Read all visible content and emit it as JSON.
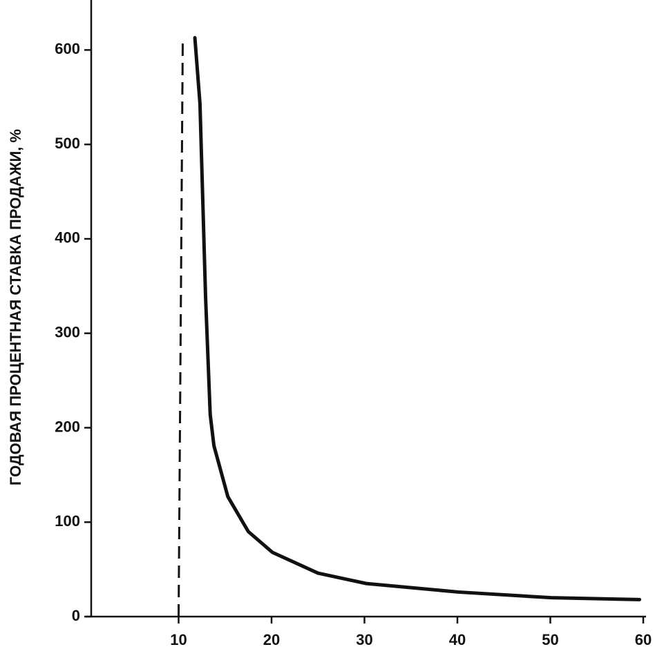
{
  "chart_data": {
    "type": "line",
    "y_label": "ГОДОВАЯ ПРОЦЕНТНАЯ СТАВКА ПРОДАЖИ, %",
    "x": [
      11.75,
      12.3,
      12.9,
      13.4,
      13.8,
      15.3,
      17.5,
      20.1,
      25,
      30.2,
      40.1,
      50.1,
      59.6
    ],
    "values": [
      613,
      543,
      339,
      214,
      181,
      127,
      90,
      68,
      46,
      35,
      26,
      20,
      18
    ],
    "color": "#111111",
    "vline": {
      "x": 10,
      "top": 610
    },
    "xlim": [
      0,
      60
    ],
    "ylim": [
      0,
      650
    ],
    "xticks": [
      10,
      20,
      30,
      40,
      50,
      60
    ],
    "yticks": [
      0,
      100,
      200,
      300,
      400,
      500,
      600
    ],
    "grid": false
  }
}
